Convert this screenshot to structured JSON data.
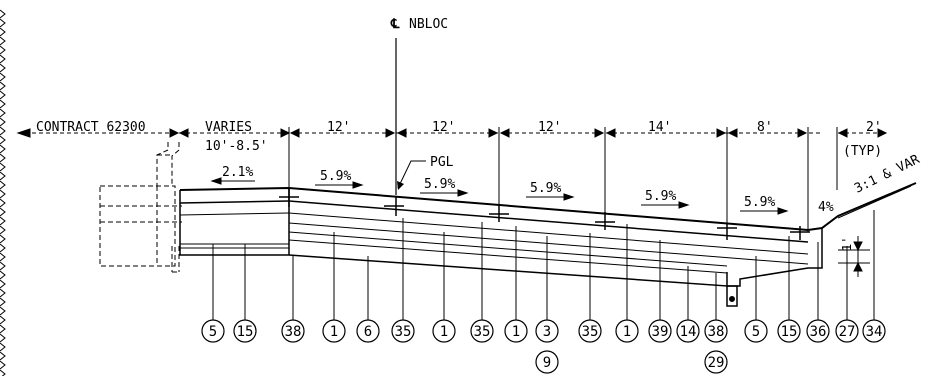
{
  "centerline_label": "NBLOC",
  "contract_label": "CONTRACT 62300",
  "dimensions": {
    "varies": "VARIES",
    "varies_range": "10'-8.5'",
    "spans": [
      "12'",
      "12'",
      "12'",
      "14'",
      "8'"
    ],
    "shoulder": "2'",
    "typ": "(TYP)",
    "depth": "1'"
  },
  "pgl_label": "PGL",
  "slopes": [
    "2.1%",
    "5.9%",
    "5.9%",
    "5.9%",
    "5.9%",
    "5.9%",
    "4%"
  ],
  "side_slope": "3:1 & VAR",
  "callouts": [
    "5",
    "15",
    "38",
    "1",
    "6",
    "35",
    "1",
    "35",
    "1",
    "3",
    "35",
    "1",
    "39",
    "14",
    "38",
    "5",
    "15",
    "36",
    "27",
    "34"
  ],
  "callouts_below": [
    "9",
    "29"
  ]
}
